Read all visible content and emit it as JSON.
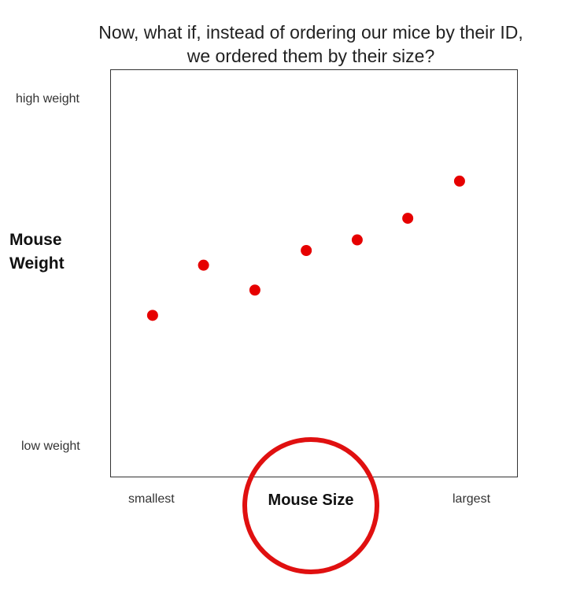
{
  "title": {
    "line1": "Now, what if, instead of ordering our mice by their ID,",
    "line2": "we ordered them by their size?"
  },
  "chart_data": {
    "type": "scatter",
    "xlabel": "Mouse Size",
    "ylabel_line1": "Mouse",
    "ylabel_line2": "Weight",
    "x_ticks": {
      "min_label": "smallest",
      "max_label": "largest"
    },
    "y_ticks": {
      "max_label": "high weight",
      "min_label": "low weight"
    },
    "xlim": [
      0,
      1
    ],
    "ylim": [
      0,
      1
    ],
    "grid": false,
    "point_color": "#e60000",
    "points": [
      {
        "x": 0.104,
        "y": 0.397
      },
      {
        "x": 0.229,
        "y": 0.52
      },
      {
        "x": 0.355,
        "y": 0.459
      },
      {
        "x": 0.481,
        "y": 0.556
      },
      {
        "x": 0.606,
        "y": 0.582
      },
      {
        "x": 0.73,
        "y": 0.635
      },
      {
        "x": 0.857,
        "y": 0.726
      }
    ]
  },
  "annotation": {
    "circle_color": "#e01010",
    "target": "Mouse Size"
  }
}
